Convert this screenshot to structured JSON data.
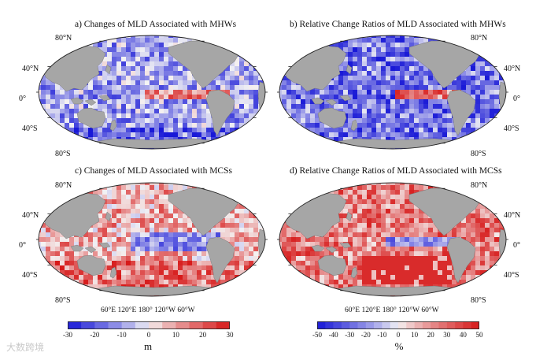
{
  "panels": [
    {
      "id": "a",
      "title": "a)  Changes of MLD Associated with MHWs",
      "scheme": "mhw_m"
    },
    {
      "id": "b",
      "title": "b)  Relative Change Ratios of MLD Associated with MHWs",
      "scheme": "mhw_pct"
    },
    {
      "id": "c",
      "title": "c)  Changes of MLD Associated with MCSs",
      "scheme": "mcs_m"
    },
    {
      "id": "d",
      "title": "d)  Relative Change Ratios of MLD Associated with MCSs",
      "scheme": "mcs_pct"
    }
  ],
  "lat_labels": {
    "n80": "80°N",
    "n40": "40°N",
    "eq": "0°",
    "s40": "40°S",
    "s80": "80°S"
  },
  "lon_labels": "60°E 120°E 180° 120°W 60°W",
  "colorbars": [
    {
      "unit": "m",
      "ticks": [
        "-30",
        "-20",
        "-10",
        "0",
        "10",
        "20",
        "30"
      ],
      "min": -30,
      "max": 30
    },
    {
      "unit": "%",
      "ticks": [
        "-50",
        "-40",
        "-30",
        "-20",
        "-10",
        "0",
        "10",
        "20",
        "30",
        "40",
        "50"
      ],
      "min": -50,
      "max": 50
    }
  ],
  "colors": {
    "ocean_neutral": "#f4f4f4",
    "land": "#a6a6a6",
    "negative": "#1a1ad9",
    "positive": "#d91a1a"
  },
  "watermark": "大数跨境"
}
